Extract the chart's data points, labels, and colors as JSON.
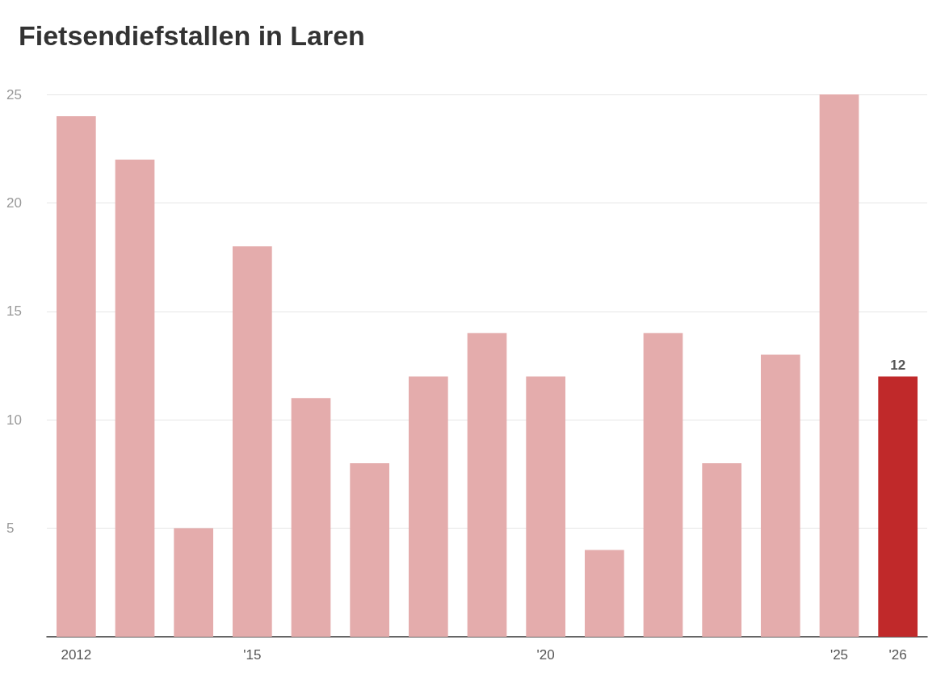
{
  "chart_data": {
    "type": "bar",
    "title": "Fietsendiefstallen in Laren",
    "categories": [
      "2012",
      null,
      null,
      "'15",
      null,
      null,
      null,
      null,
      "'20",
      null,
      null,
      null,
      null,
      "'25",
      "'26"
    ],
    "values": [
      24,
      22,
      5,
      18,
      11,
      8,
      12,
      14,
      12,
      4,
      14,
      8,
      13,
      25,
      12
    ],
    "colors": [
      "#e4acac",
      "#e4acac",
      "#e4acac",
      "#e4acac",
      "#e4acac",
      "#e4acac",
      "#e4acac",
      "#e4acac",
      "#e4acac",
      "#e4acac",
      "#e4acac",
      "#e4acac",
      "#e4acac",
      "#e4acac",
      "#c0292a"
    ],
    "value_labels": [
      null,
      null,
      null,
      null,
      null,
      null,
      null,
      null,
      null,
      null,
      null,
      null,
      null,
      null,
      "12"
    ],
    "ylim": [
      0,
      25
    ],
    "yticks": [
      5,
      10,
      15,
      20,
      25
    ],
    "grid": "y"
  }
}
